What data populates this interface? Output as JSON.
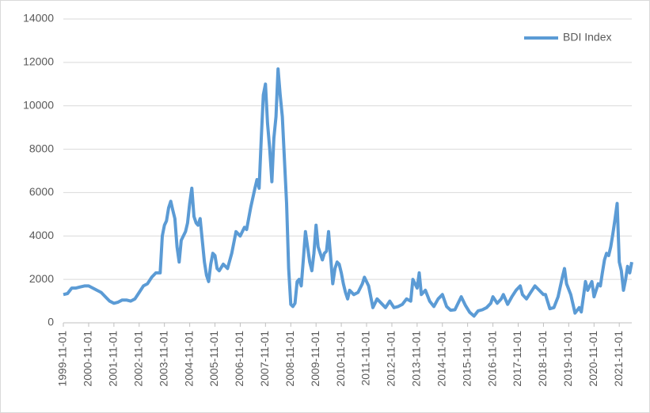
{
  "chart_data": {
    "type": "line",
    "x": [
      "1999-11-01",
      "2000-01-01",
      "2000-03-01",
      "2000-05-01",
      "2000-07-01",
      "2000-09-01",
      "2000-11-01",
      "2001-01-01",
      "2001-03-01",
      "2001-05-01",
      "2001-07-01",
      "2001-09-01",
      "2001-11-01",
      "2002-01-01",
      "2002-03-01",
      "2002-05-01",
      "2002-07-01",
      "2002-09-01",
      "2002-11-01",
      "2003-01-01",
      "2003-03-01",
      "2003-05-01",
      "2003-07-01",
      "2003-09-01",
      "2003-10-01",
      "2003-11-01",
      "2003-12-01",
      "2004-01-01",
      "2004-02-01",
      "2004-03-01",
      "2004-04-01",
      "2004-05-01",
      "2004-06-01",
      "2004-07-01",
      "2004-08-01",
      "2004-09-01",
      "2004-10-01",
      "2004-11-01",
      "2004-12-01",
      "2005-01-01",
      "2005-02-01",
      "2005-03-01",
      "2005-04-01",
      "2005-05-01",
      "2005-06-01",
      "2005-07-01",
      "2005-08-01",
      "2005-09-01",
      "2005-10-01",
      "2005-11-01",
      "2005-12-01",
      "2006-01-01",
      "2006-03-01",
      "2006-05-01",
      "2006-07-01",
      "2006-09-01",
      "2006-11-01",
      "2007-01-01",
      "2007-02-01",
      "2007-04-01",
      "2007-06-01",
      "2007-07-01",
      "2007-08-01",
      "2007-09-01",
      "2007-10-01",
      "2007-11-01",
      "2007-12-01",
      "2008-01-01",
      "2008-02-01",
      "2008-03-01",
      "2008-04-01",
      "2008-05-01",
      "2008-06-01",
      "2008-07-01",
      "2008-08-01",
      "2008-09-01",
      "2008-10-01",
      "2008-11-01",
      "2008-12-01",
      "2009-01-01",
      "2009-02-01",
      "2009-03-01",
      "2009-04-01",
      "2009-05-01",
      "2009-06-01",
      "2009-07-01",
      "2009-08-01",
      "2009-09-01",
      "2009-10-01",
      "2009-11-01",
      "2009-12-01",
      "2010-01-01",
      "2010-02-01",
      "2010-03-01",
      "2010-04-01",
      "2010-05-01",
      "2010-06-01",
      "2010-07-01",
      "2010-08-01",
      "2010-09-01",
      "2010-10-01",
      "2010-11-01",
      "2010-12-01",
      "2011-01-01",
      "2011-02-01",
      "2011-03-01",
      "2011-05-01",
      "2011-07-01",
      "2011-09-01",
      "2011-10-01",
      "2011-12-01",
      "2012-02-01",
      "2012-04-01",
      "2012-06-01",
      "2012-08-01",
      "2012-10-01",
      "2012-12-01",
      "2013-02-01",
      "2013-04-01",
      "2013-06-01",
      "2013-08-01",
      "2013-09-01",
      "2013-11-01",
      "2013-12-01",
      "2014-01-01",
      "2014-03-01",
      "2014-05-01",
      "2014-07-01",
      "2014-09-01",
      "2014-11-01",
      "2015-01-01",
      "2015-03-01",
      "2015-05-01",
      "2015-07-01",
      "2015-08-01",
      "2015-10-01",
      "2015-12-01",
      "2016-02-01",
      "2016-04-01",
      "2016-06-01",
      "2016-08-01",
      "2016-10-01",
      "2016-11-01",
      "2017-01-01",
      "2017-03-01",
      "2017-04-01",
      "2017-06-01",
      "2017-08-01",
      "2017-10-01",
      "2017-12-01",
      "2018-01-01",
      "2018-03-01",
      "2018-05-01",
      "2018-07-01",
      "2018-09-01",
      "2018-11-01",
      "2018-12-01",
      "2019-02-01",
      "2019-04-01",
      "2019-06-01",
      "2019-08-01",
      "2019-09-01",
      "2019-10-01",
      "2019-12-01",
      "2020-02-01",
      "2020-04-01",
      "2020-05-01",
      "2020-06-01",
      "2020-07-01",
      "2020-08-01",
      "2020-10-01",
      "2020-11-01",
      "2021-01-01",
      "2021-02-01",
      "2021-03-01",
      "2021-04-01",
      "2021-05-01",
      "2021-06-01",
      "2021-07-01",
      "2021-08-01",
      "2021-09-01",
      "2021-10-01",
      "2021-11-01",
      "2021-12-01",
      "2022-01-01",
      "2022-02-01",
      "2022-03-01",
      "2022-04-01",
      "2022-05-01"
    ],
    "series": [
      {
        "name": "BDI Index",
        "color": "#5b9bd5",
        "values": [
          1300,
          1350,
          1600,
          1600,
          1650,
          1700,
          1700,
          1600,
          1500,
          1400,
          1200,
          1000,
          900,
          950,
          1050,
          1050,
          1000,
          1100,
          1400,
          1700,
          1800,
          2100,
          2300,
          2300,
          4000,
          4500,
          4700,
          5300,
          5600,
          5200,
          4800,
          3500,
          2800,
          3800,
          4000,
          4200,
          4600,
          5500,
          6200,
          4900,
          4600,
          4500,
          4800,
          3800,
          2800,
          2200,
          1900,
          2700,
          3200,
          3100,
          2500,
          2400,
          2700,
          2500,
          3200,
          4200,
          4000,
          4400,
          4300,
          5300,
          6200,
          6600,
          6200,
          8500,
          10500,
          11000,
          9200,
          8000,
          6500,
          8500,
          9500,
          11700,
          10500,
          9500,
          7500,
          5500,
          2500,
          850,
          750,
          900,
          1900,
          2000,
          1700,
          2900,
          4200,
          3500,
          2800,
          2400,
          3200,
          4500,
          3500,
          3200,
          2900,
          3200,
          3300,
          4200,
          3000,
          1800,
          2500,
          2800,
          2700,
          2300,
          1800,
          1400,
          1100,
          1500,
          1300,
          1400,
          1800,
          2100,
          1700,
          700,
          1100,
          900,
          700,
          1000,
          700,
          750,
          850,
          1100,
          1000,
          2000,
          1600,
          2300,
          1300,
          1500,
          1000,
          750,
          1100,
          1300,
          750,
          580,
          600,
          1000,
          1200,
          800,
          480,
          310,
          550,
          600,
          700,
          900,
          1200,
          900,
          1100,
          1300,
          850,
          1200,
          1500,
          1700,
          1300,
          1100,
          1400,
          1700,
          1500,
          1300,
          1300,
          650,
          700,
          1200,
          2100,
          2500,
          1800,
          1300,
          450,
          700,
          500,
          1200,
          1900,
          1500,
          1900,
          1200,
          1800,
          1700,
          2300,
          2900,
          3200,
          3100,
          3500,
          4100,
          4800,
          5500,
          2800,
          2400,
          1500,
          2000,
          2600,
          2300,
          2800
        ]
      }
    ],
    "xlim": [
      "1999-11-01",
      "2022-05-01"
    ],
    "xticks": [
      "1999-11-01",
      "2000-11-01",
      "2001-11-01",
      "2002-11-01",
      "2003-11-01",
      "2004-11-01",
      "2005-11-01",
      "2006-11-01",
      "2007-11-01",
      "2008-11-01",
      "2009-11-01",
      "2010-11-01",
      "2011-11-01",
      "2012-11-01",
      "2013-11-01",
      "2014-11-01",
      "2015-11-01",
      "2016-11-01",
      "2017-11-01",
      "2018-11-01",
      "2019-11-01",
      "2020-11-01",
      "2021-11-01"
    ],
    "ylim": [
      0,
      14000
    ],
    "yticks": [
      0,
      2000,
      4000,
      6000,
      8000,
      10000,
      12000,
      14000
    ],
    "grid": true,
    "legend": "top-right"
  }
}
